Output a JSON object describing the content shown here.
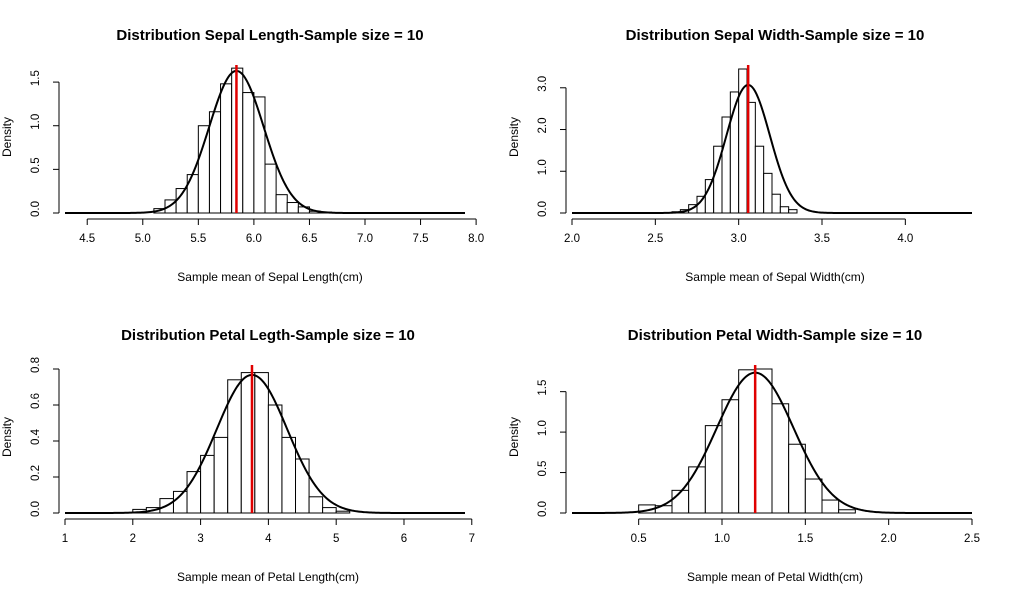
{
  "colors": {
    "mean_line": "#e00000",
    "bars": "#ffffff",
    "stroke": "#000000"
  },
  "chart_data": [
    {
      "type": "histogram",
      "title": "Distribution Sepal Length-Sample size =  10",
      "xlabel": "Sample mean of Sepal Length(cm)",
      "ylabel": "Density",
      "xlim": [
        4.3,
        7.9
      ],
      "ylim": [
        0,
        1.65
      ],
      "xticks": [
        "4.5",
        "5.0",
        "5.5",
        "6.0",
        "6.5",
        "7.0",
        "7.5",
        "8.0"
      ],
      "yticks": [
        "0.0",
        "0.5",
        "1.0",
        "1.5"
      ],
      "bin_width": 0.1,
      "bins_start": 5.0,
      "bin_values": [
        0.0,
        0.05,
        0.15,
        0.28,
        0.44,
        1.0,
        1.16,
        1.48,
        1.66,
        1.38,
        1.33,
        0.56,
        0.21,
        0.12,
        0.07,
        0.02,
        0.01
      ],
      "curve": {
        "mean": 5.843,
        "sd": 0.245,
        "range": [
          4.3,
          7.9
        ]
      },
      "mean_line": 5.843,
      "grid": false
    },
    {
      "type": "histogram",
      "title": "Distribution Sepal Width-Sample size =  10",
      "xlabel": "Sample mean of Sepal Width(cm)",
      "ylabel": "Density",
      "xlim": [
        2.0,
        4.4
      ],
      "ylim": [
        0,
        3.45
      ],
      "xticks": [
        "2.0",
        "2.5",
        "3.0",
        "3.5",
        "4.0"
      ],
      "yticks": [
        "0.0",
        "1.0",
        "2.0",
        "3.0"
      ],
      "bin_width": 0.05,
      "bins_start": 2.6,
      "bin_values": [
        0.03,
        0.08,
        0.2,
        0.4,
        0.8,
        1.6,
        2.3,
        2.9,
        3.45,
        2.65,
        1.6,
        0.95,
        0.45,
        0.15,
        0.08
      ],
      "curve": {
        "mean": 3.057,
        "sd": 0.13,
        "range": [
          2.0,
          4.4
        ]
      },
      "mean_line": 3.057,
      "grid": false
    },
    {
      "type": "histogram",
      "title": "Distribution Petal Legth-Sample size =  10",
      "xlabel": "Sample mean of Petal Length(cm)",
      "ylabel": "Density",
      "xlim": [
        1.0,
        6.9
      ],
      "ylim": [
        0,
        0.8
      ],
      "xticks": [
        "1",
        "2",
        "3",
        "4",
        "5",
        "6",
        "7"
      ],
      "yticks": [
        "0.0",
        "0.2",
        "0.4",
        "0.6",
        "0.8"
      ],
      "bin_width": 0.2,
      "bins_start": 2.0,
      "bin_values": [
        0.02,
        0.03,
        0.08,
        0.12,
        0.23,
        0.32,
        0.42,
        0.74,
        0.78,
        0.78,
        0.6,
        0.42,
        0.3,
        0.09,
        0.03,
        0.01
      ],
      "curve": {
        "mean": 3.758,
        "sd": 0.52,
        "range": [
          1.0,
          6.9
        ]
      },
      "mean_line": 3.758,
      "grid": false
    },
    {
      "type": "histogram",
      "title": "Distribution Petal Width-Sample size =  10",
      "xlabel": "Sample mean of Petal Width(cm)",
      "ylabel": "Density",
      "xlim": [
        0.1,
        2.5
      ],
      "ylim": [
        0,
        1.78
      ],
      "xticks": [
        "0.5",
        "1.0",
        "1.5",
        "2.0",
        "2.5"
      ],
      "yticks": [
        "0.0",
        "0.5",
        "1.0",
        "1.5"
      ],
      "bin_width": 0.1,
      "bins_start": 0.5,
      "bin_values": [
        0.1,
        0.09,
        0.28,
        0.57,
        1.08,
        1.4,
        1.77,
        1.78,
        1.35,
        0.85,
        0.42,
        0.16,
        0.04
      ],
      "curve": {
        "mean": 1.199,
        "sd": 0.23,
        "range": [
          0.1,
          2.5
        ]
      },
      "mean_line": 1.199,
      "grid": false
    }
  ]
}
